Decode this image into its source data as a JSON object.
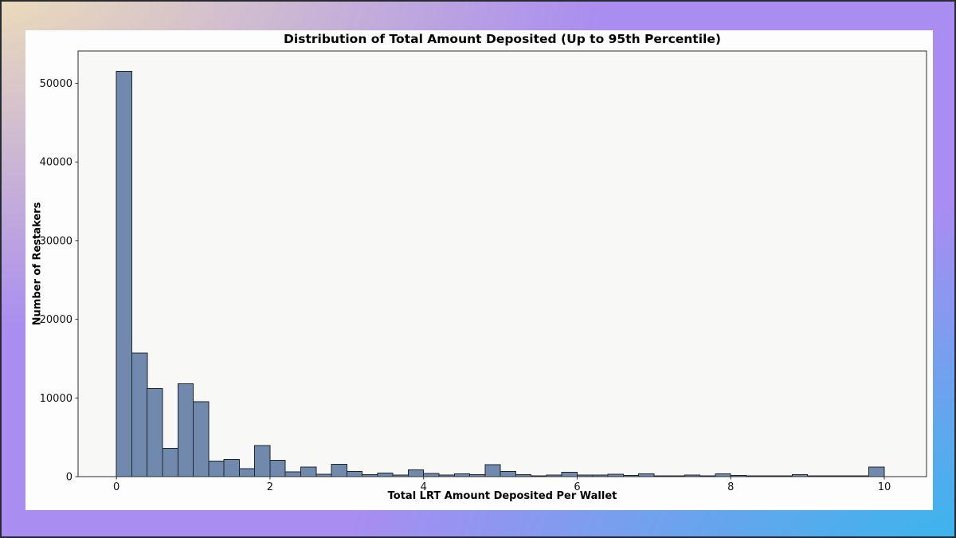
{
  "page": {
    "background_corner_colors": {
      "top_left": "#f1e4b4",
      "top_right": "#a98df0",
      "bottom_left": "#a98df0",
      "bottom_right": "#2fb9ec"
    },
    "figure_background": "#fdfdfd"
  },
  "chart_data": {
    "type": "bar",
    "subtype": "histogram",
    "title": "Distribution of Total Amount Deposited (Up to 95th Percentile)",
    "xlabel": "Total LRT Amount Deposited Per Wallet",
    "ylabel": "Number of Restakers",
    "bin_start": 0,
    "bin_width": 0.2,
    "values": [
      51500,
      15700,
      11200,
      3600,
      11800,
      9500,
      2000,
      2200,
      1000,
      3950,
      2100,
      600,
      1200,
      280,
      1550,
      680,
      250,
      450,
      220,
      880,
      430,
      220,
      350,
      250,
      1520,
      680,
      250,
      120,
      220,
      550,
      190,
      190,
      300,
      150,
      360,
      110,
      100,
      180,
      80,
      350,
      130,
      90,
      100,
      90,
      230,
      80,
      100,
      80,
      100,
      1220
    ],
    "xlim": [
      -0.5,
      10.55
    ],
    "ylim": [
      0,
      54100
    ],
    "xticks": [
      0,
      2,
      4,
      6,
      8,
      10
    ],
    "yticks": [
      0,
      10000,
      20000,
      30000,
      40000,
      50000
    ],
    "xtick_labels": [
      "0",
      "2",
      "4",
      "6",
      "8",
      "10"
    ],
    "ytick_labels": [
      "0",
      "10000",
      "20000",
      "30000",
      "40000",
      "50000"
    ],
    "grid": false,
    "legend": null,
    "bar_color": "#7089ad",
    "bar_edge_color": "#1b2531",
    "plot_background": "#f8f8f7",
    "spine_color": "#2e2e2e",
    "tick_label_color": "#111111"
  }
}
